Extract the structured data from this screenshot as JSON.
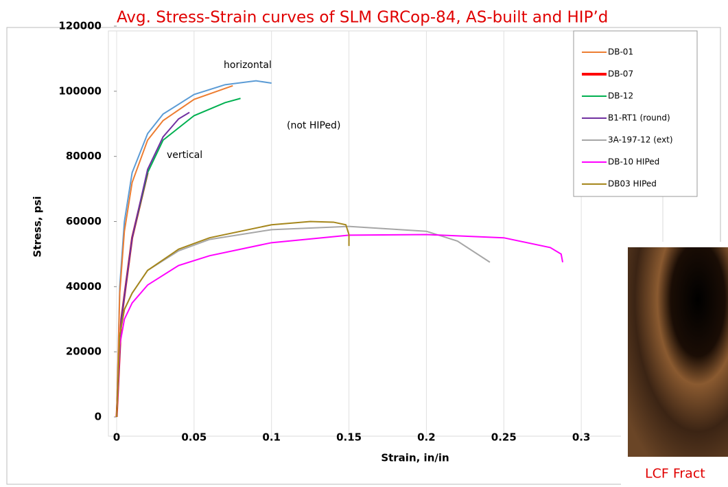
{
  "chart_data": {
    "type": "line",
    "title": "Avg. Stress-Strain curves of SLM GRCop-84, AS-built and HIP’d",
    "x_label": "Strain, in/in",
    "y_label": "Stress, psi",
    "annotations": [
      "horizontal",
      "(not HIPed)",
      "vertical"
    ],
    "xlim": [
      0,
      0.35
    ],
    "xticks": [
      0,
      0.05,
      0.1,
      0.15,
      0.2,
      0.25,
      0.3
    ],
    "ylim": [
      0,
      120000
    ],
    "yticks": [
      0,
      20000,
      40000,
      60000,
      80000,
      100000,
      120000
    ],
    "grid": "x",
    "series": [
      {
        "color": "#5b9bd5",
        "x": [
          0,
          0.002,
          0.005,
          0.01,
          0.02,
          0.03,
          0.05,
          0.07,
          0.09,
          0.1
        ],
        "values": [
          0,
          40000,
          60000,
          75000,
          87000,
          93000,
          99000,
          102000,
          103200,
          102500
        ]
      },
      {
        "name": "DB-01",
        "color": "#ed7d31",
        "x": [
          0,
          0.002,
          0.005,
          0.01,
          0.02,
          0.03,
          0.05,
          0.075
        ],
        "values": [
          0,
          38000,
          57000,
          72000,
          85000,
          91000,
          97500,
          101700
        ]
      },
      {
        "name": "DB-07",
        "color": "#ff0000",
        "x": [
          0,
          0.003,
          0.01,
          0.02
        ],
        "values": [
          0,
          30000,
          55000,
          75000
        ]
      },
      {
        "name": "DB-12",
        "color": "#00b050",
        "x": [
          0,
          0.003,
          0.01,
          0.02,
          0.03,
          0.05,
          0.07,
          0.08
        ],
        "values": [
          0,
          30000,
          55000,
          75000,
          85000,
          92500,
          96500,
          97800
        ]
      },
      {
        "name": "B1-RT1 (round)",
        "color": "#7030a0",
        "x": [
          0,
          0.003,
          0.01,
          0.02,
          0.03,
          0.04,
          0.047
        ],
        "values": [
          0,
          30000,
          55000,
          76000,
          86000,
          91500,
          93500
        ]
      },
      {
        "name": "3A-197-12 (ext)",
        "color": "#a6a6a6",
        "x": [
          0,
          0.002,
          0.005,
          0.01,
          0.02,
          0.04,
          0.06,
          0.1,
          0.15,
          0.2,
          0.22,
          0.241
        ],
        "values": [
          0,
          25000,
          33000,
          38000,
          45000,
          51000,
          54500,
          57500,
          58500,
          57000,
          54000,
          47500
        ]
      },
      {
        "name": "DB-10 HIPed",
        "color": "#ff00ff",
        "x": [
          0,
          0.002,
          0.005,
          0.01,
          0.02,
          0.04,
          0.06,
          0.1,
          0.15,
          0.2,
          0.25,
          0.28,
          0.287,
          0.288
        ],
        "values": [
          0,
          22000,
          30000,
          35000,
          40500,
          46500,
          49500,
          53500,
          55800,
          56000,
          55000,
          52000,
          50000,
          47500
        ]
      },
      {
        "name": "DB03 HIPed",
        "color": "#a5861b",
        "x": [
          0,
          0.002,
          0.005,
          0.01,
          0.02,
          0.04,
          0.06,
          0.1,
          0.125,
          0.14,
          0.148,
          0.15,
          0.15
        ],
        "values": [
          0,
          25000,
          33000,
          38000,
          45000,
          51500,
          55000,
          59000,
          60000,
          59800,
          59000,
          56000,
          52500
        ]
      }
    ]
  },
  "photo_caption": "LCF Fract"
}
